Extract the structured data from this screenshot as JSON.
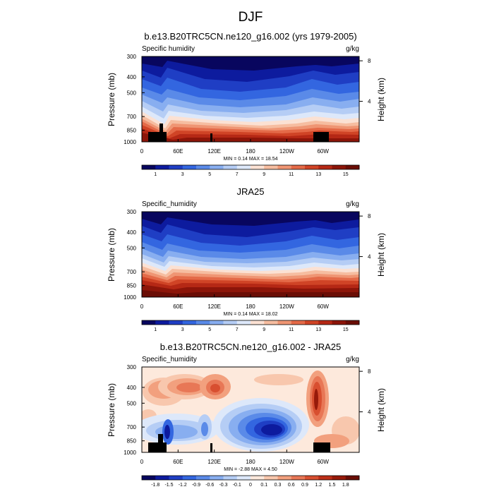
{
  "figure_title": "DJF",
  "chart_data": [
    {
      "type": "heatmap",
      "title": "b.e13.B20TRC5CN.ne120_g16.002 (yrs 1979-2005)",
      "variable": "Specific humidity",
      "units": "g/kg",
      "ylabel": "Pressure (mb)",
      "ylabel_right": "Height (km)",
      "xlabel": "",
      "x_ticks": [
        "0",
        "60E",
        "120E",
        "180",
        "120W",
        "60W"
      ],
      "x_tick_lons": [
        0,
        60,
        120,
        180,
        240,
        300
      ],
      "xlim": [
        0,
        360
      ],
      "y_ticks": [
        "300",
        "400",
        "500",
        "700",
        "850",
        "1000"
      ],
      "y_tick_values": [
        300,
        400,
        500,
        700,
        850,
        1000
      ],
      "ylim": [
        300,
        1000
      ],
      "height_ticks": [
        "8",
        "4"
      ],
      "height_tick_km": [
        8,
        4
      ],
      "min_max_label": "MIN =   0.14  MAX =  18.54",
      "min": 0.14,
      "max": 18.54,
      "colorbar": {
        "labels": [
          "1",
          "3",
          "5",
          "7",
          "9",
          "11",
          "13",
          "15"
        ],
        "colors": [
          "#08065e",
          "#0d1b9e",
          "#1f3ec4",
          "#3366e0",
          "#5a8ae8",
          "#88aef0",
          "#b5cdf5",
          "#dde8fa",
          "#fbe1d3",
          "#f6bda0",
          "#ef9573",
          "#e46a48",
          "#d04426",
          "#b52815",
          "#8c1509",
          "#6a0d05"
        ]
      }
    },
    {
      "type": "heatmap",
      "title": "JRA25",
      "variable": "Specific_humidity",
      "units": "g/kg",
      "ylabel": "Pressure (mb)",
      "ylabel_right": "Height (km)",
      "xlabel": "",
      "x_ticks": [
        "0",
        "60E",
        "120E",
        "180",
        "120W",
        "60W"
      ],
      "x_tick_lons": [
        0,
        60,
        120,
        180,
        240,
        300
      ],
      "xlim": [
        0,
        360
      ],
      "y_ticks": [
        "300",
        "400",
        "500",
        "700",
        "850",
        "1000"
      ],
      "y_tick_values": [
        300,
        400,
        500,
        700,
        850,
        1000
      ],
      "ylim": [
        300,
        1000
      ],
      "height_ticks": [
        "8",
        "4"
      ],
      "height_tick_km": [
        8,
        4
      ],
      "min_max_label": "MIN =   0.14  MAX =  18.02",
      "min": 0.14,
      "max": 18.02,
      "colorbar": {
        "labels": [
          "1",
          "3",
          "5",
          "7",
          "9",
          "11",
          "13",
          "15"
        ],
        "colors": [
          "#08065e",
          "#0d1b9e",
          "#1f3ec4",
          "#3366e0",
          "#5a8ae8",
          "#88aef0",
          "#b5cdf5",
          "#dde8fa",
          "#fbe1d3",
          "#f6bda0",
          "#ef9573",
          "#e46a48",
          "#d04426",
          "#b52815",
          "#8c1509",
          "#6a0d05"
        ]
      }
    },
    {
      "type": "heatmap",
      "title": "b.e13.B20TRC5CN.ne120_g16.002 - JRA25",
      "variable": "Specific_humidity",
      "units": "g/kg",
      "ylabel": "Pressure (mb)",
      "ylabel_right": "Height (km)",
      "xlabel": "",
      "x_ticks": [
        "0",
        "60E",
        "120E",
        "180",
        "120W",
        "60W"
      ],
      "x_tick_lons": [
        0,
        60,
        120,
        180,
        240,
        300
      ],
      "xlim": [
        0,
        360
      ],
      "y_ticks": [
        "300",
        "400",
        "500",
        "700",
        "850",
        "1000"
      ],
      "y_tick_values": [
        300,
        400,
        500,
        700,
        850,
        1000
      ],
      "ylim": [
        300,
        1000
      ],
      "height_ticks": [
        "8",
        "4"
      ],
      "height_tick_km": [
        8,
        4
      ],
      "min_max_label": "MIN =  -2.88  MAX =   4.50",
      "min": -2.88,
      "max": 4.5,
      "colorbar": {
        "labels": [
          "-1.8",
          "-1.5",
          "-1.2",
          "-0.9",
          "-0.6",
          "-0.3",
          "-0.1",
          "0",
          "0.1",
          "0.3",
          "0.6",
          "0.9",
          "1.2",
          "1.5",
          "1.8"
        ],
        "colors": [
          "#08065e",
          "#0d1b9e",
          "#1f3ec4",
          "#3366e0",
          "#5a8ae8",
          "#88aef0",
          "#b5cdf5",
          "#dde8fa",
          "#fde9dc",
          "#f8c7ad",
          "#f2a07e",
          "#e87756",
          "#d84f30",
          "#bd2f18",
          "#971a0a",
          "#6a0d05"
        ]
      }
    }
  ]
}
